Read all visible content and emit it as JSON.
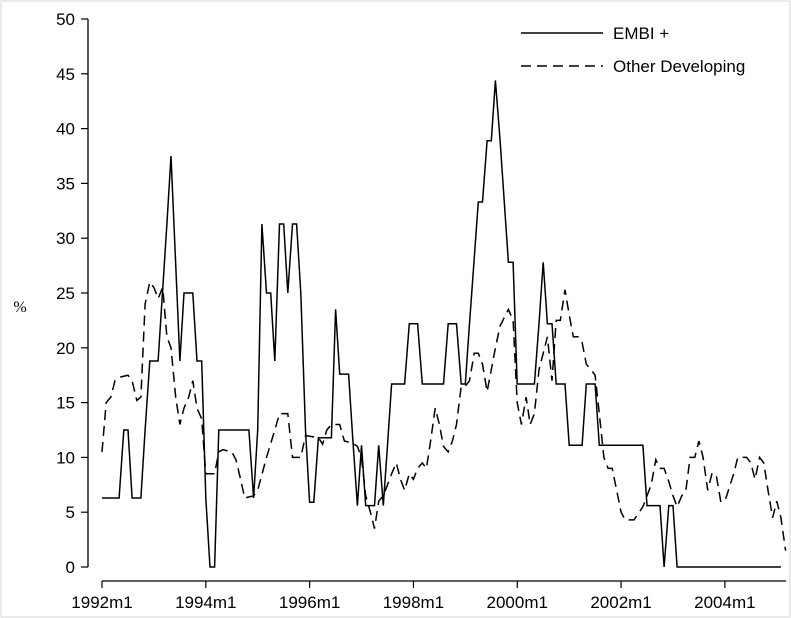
{
  "chart_data": {
    "type": "line",
    "ylabel": "%",
    "xlabel": "",
    "x_ticks": [
      "1992m1",
      "1994m1",
      "1996m1",
      "1998m1",
      "2000m1",
      "2002m1",
      "2004m1"
    ],
    "y_ticks": [
      "0",
      "5",
      "10",
      "15",
      "20",
      "25",
      "30",
      "35",
      "40",
      "45",
      "50"
    ],
    "xlim": [
      1992.0,
      2005.17
    ],
    "ylim": [
      0,
      50
    ],
    "grid": false,
    "legend_position": "top-right",
    "series": [
      {
        "name": "EMBI +",
        "style": "solid",
        "color": "#000000",
        "points": [
          [
            1992.0,
            6.3
          ],
          [
            1992.33,
            6.3
          ],
          [
            1992.42,
            12.5
          ],
          [
            1992.5,
            12.5
          ],
          [
            1992.58,
            6.3
          ],
          [
            1992.75,
            6.3
          ],
          [
            1992.83,
            12.5
          ],
          [
            1992.92,
            18.8
          ],
          [
            1993.08,
            18.8
          ],
          [
            1993.25,
            31.3
          ],
          [
            1993.33,
            37.5
          ],
          [
            1993.5,
            18.8
          ],
          [
            1993.58,
            25.0
          ],
          [
            1993.75,
            25.0
          ],
          [
            1993.83,
            18.8
          ],
          [
            1993.92,
            18.8
          ],
          [
            1994.0,
            6.3
          ],
          [
            1994.08,
            0.0
          ],
          [
            1994.17,
            0.0
          ],
          [
            1994.25,
            12.5
          ],
          [
            1994.83,
            12.5
          ],
          [
            1994.92,
            6.3
          ],
          [
            1995.0,
            12.5
          ],
          [
            1995.08,
            31.3
          ],
          [
            1995.17,
            25.0
          ],
          [
            1995.25,
            25.0
          ],
          [
            1995.33,
            18.8
          ],
          [
            1995.42,
            31.3
          ],
          [
            1995.5,
            31.3
          ],
          [
            1995.58,
            25.0
          ],
          [
            1995.67,
            31.3
          ],
          [
            1995.75,
            31.3
          ],
          [
            1995.83,
            25.0
          ],
          [
            1995.92,
            12.5
          ],
          [
            1996.0,
            5.9
          ],
          [
            1996.08,
            5.9
          ],
          [
            1996.17,
            11.8
          ],
          [
            1996.42,
            11.8
          ],
          [
            1996.5,
            23.5
          ],
          [
            1996.58,
            17.6
          ],
          [
            1996.75,
            17.6
          ],
          [
            1996.83,
            11.8
          ],
          [
            1996.92,
            5.6
          ],
          [
            1997.0,
            11.1
          ],
          [
            1997.08,
            5.6
          ],
          [
            1997.25,
            5.6
          ],
          [
            1997.33,
            11.1
          ],
          [
            1997.42,
            5.6
          ],
          [
            1997.5,
            11.1
          ],
          [
            1997.58,
            16.7
          ],
          [
            1997.83,
            16.7
          ],
          [
            1997.92,
            22.2
          ],
          [
            1998.08,
            22.2
          ],
          [
            1998.17,
            16.7
          ],
          [
            1998.58,
            16.7
          ],
          [
            1998.67,
            22.2
          ],
          [
            1998.83,
            22.2
          ],
          [
            1998.92,
            16.7
          ],
          [
            1999.0,
            16.7
          ],
          [
            1999.08,
            22.2
          ],
          [
            1999.25,
            33.3
          ],
          [
            1999.33,
            33.3
          ],
          [
            1999.42,
            38.9
          ],
          [
            1999.5,
            38.9
          ],
          [
            1999.58,
            44.4
          ],
          [
            1999.67,
            38.9
          ],
          [
            1999.83,
            27.8
          ],
          [
            1999.92,
            27.8
          ],
          [
            2000.0,
            16.7
          ],
          [
            2000.33,
            16.7
          ],
          [
            2000.42,
            22.2
          ],
          [
            2000.5,
            27.8
          ],
          [
            2000.58,
            22.2
          ],
          [
            2000.67,
            22.2
          ],
          [
            2000.75,
            16.7
          ],
          [
            2000.92,
            16.7
          ],
          [
            2001.0,
            11.1
          ],
          [
            2001.25,
            11.1
          ],
          [
            2001.33,
            16.7
          ],
          [
            2001.5,
            16.7
          ],
          [
            2001.58,
            11.1
          ],
          [
            2002.42,
            11.1
          ],
          [
            2002.5,
            5.6
          ],
          [
            2002.75,
            5.6
          ],
          [
            2002.83,
            0.0
          ],
          [
            2002.92,
            5.6
          ],
          [
            2003.0,
            5.6
          ],
          [
            2003.08,
            0.0
          ],
          [
            2005.08,
            0.0
          ]
        ]
      },
      {
        "name": "Other Developing",
        "style": "dashed",
        "color": "#000000",
        "points": [
          [
            1992.0,
            10.5
          ],
          [
            1992.08,
            15.0
          ],
          [
            1992.17,
            15.5
          ],
          [
            1992.25,
            17.0
          ],
          [
            1992.33,
            17.3
          ],
          [
            1992.5,
            17.5
          ],
          [
            1992.58,
            17.0
          ],
          [
            1992.67,
            15.2
          ],
          [
            1992.75,
            15.5
          ],
          [
            1992.83,
            24.0
          ],
          [
            1992.92,
            26.0
          ],
          [
            1993.0,
            25.5
          ],
          [
            1993.08,
            24.5
          ],
          [
            1993.17,
            25.5
          ],
          [
            1993.25,
            21.0
          ],
          [
            1993.33,
            20.0
          ],
          [
            1993.42,
            15.5
          ],
          [
            1993.5,
            13.0
          ],
          [
            1993.58,
            14.5
          ],
          [
            1993.67,
            15.5
          ],
          [
            1993.75,
            17.0
          ],
          [
            1993.83,
            14.5
          ],
          [
            1993.92,
            13.5
          ],
          [
            1994.0,
            8.5
          ],
          [
            1994.17,
            8.5
          ],
          [
            1994.25,
            10.5
          ],
          [
            1994.33,
            10.7
          ],
          [
            1994.5,
            10.5
          ],
          [
            1994.58,
            9.8
          ],
          [
            1994.67,
            8.0
          ],
          [
            1994.75,
            6.3
          ],
          [
            1994.92,
            6.5
          ],
          [
            1995.0,
            7.0
          ],
          [
            1995.17,
            10.0
          ],
          [
            1995.33,
            12.5
          ],
          [
            1995.42,
            14.0
          ],
          [
            1995.58,
            14.0
          ],
          [
            1995.67,
            10.0
          ],
          [
            1995.83,
            10.0
          ],
          [
            1995.92,
            12.0
          ],
          [
            1996.17,
            11.8
          ],
          [
            1996.25,
            11.2
          ],
          [
            1996.33,
            12.5
          ],
          [
            1996.42,
            13.0
          ],
          [
            1996.58,
            13.0
          ],
          [
            1996.67,
            11.5
          ],
          [
            1996.83,
            11.3
          ],
          [
            1996.92,
            11.0
          ],
          [
            1997.0,
            10.0
          ],
          [
            1997.08,
            6.5
          ],
          [
            1997.17,
            5.0
          ],
          [
            1997.25,
            3.5
          ],
          [
            1997.33,
            6.0
          ],
          [
            1997.42,
            6.5
          ],
          [
            1997.5,
            7.5
          ],
          [
            1997.58,
            8.5
          ],
          [
            1997.67,
            9.5
          ],
          [
            1997.75,
            8.0
          ],
          [
            1997.83,
            7.0
          ],
          [
            1997.92,
            8.5
          ],
          [
            1998.0,
            8.0
          ],
          [
            1998.08,
            9.0
          ],
          [
            1998.17,
            9.5
          ],
          [
            1998.25,
            9.0
          ],
          [
            1998.33,
            11.5
          ],
          [
            1998.42,
            14.5
          ],
          [
            1998.5,
            13.0
          ],
          [
            1998.58,
            11.0
          ],
          [
            1998.67,
            10.5
          ],
          [
            1998.75,
            11.5
          ],
          [
            1998.83,
            13.0
          ],
          [
            1998.92,
            16.5
          ],
          [
            1999.0,
            16.5
          ],
          [
            1999.08,
            17.0
          ],
          [
            1999.17,
            19.5
          ],
          [
            1999.25,
            19.5
          ],
          [
            1999.33,
            18.5
          ],
          [
            1999.42,
            16.0
          ],
          [
            1999.5,
            18.0
          ],
          [
            1999.58,
            20.0
          ],
          [
            1999.67,
            22.0
          ],
          [
            1999.83,
            23.5
          ],
          [
            1999.92,
            22.5
          ],
          [
            2000.0,
            15.0
          ],
          [
            2000.08,
            13.0
          ],
          [
            2000.17,
            15.5
          ],
          [
            2000.25,
            13.0
          ],
          [
            2000.33,
            14.0
          ],
          [
            2000.42,
            18.0
          ],
          [
            2000.5,
            19.5
          ],
          [
            2000.58,
            21.0
          ],
          [
            2000.67,
            17.0
          ],
          [
            2000.75,
            22.5
          ],
          [
            2000.83,
            22.5
          ],
          [
            2000.92,
            25.3
          ],
          [
            2001.0,
            23.0
          ],
          [
            2001.08,
            21.0
          ],
          [
            2001.17,
            21.0
          ],
          [
            2001.25,
            20.5
          ],
          [
            2001.33,
            18.5
          ],
          [
            2001.42,
            18.0
          ],
          [
            2001.5,
            17.5
          ],
          [
            2001.58,
            14.0
          ],
          [
            2001.67,
            10.0
          ],
          [
            2001.75,
            9.0
          ],
          [
            2001.83,
            9.0
          ],
          [
            2002.0,
            5.0
          ],
          [
            2002.08,
            4.3
          ],
          [
            2002.25,
            4.3
          ],
          [
            2002.42,
            5.5
          ],
          [
            2002.5,
            6.5
          ],
          [
            2002.58,
            7.5
          ],
          [
            2002.67,
            9.8
          ],
          [
            2002.75,
            9.0
          ],
          [
            2002.83,
            9.0
          ],
          [
            2002.92,
            7.8
          ],
          [
            2003.0,
            6.5
          ],
          [
            2003.08,
            5.5
          ],
          [
            2003.17,
            6.5
          ],
          [
            2003.25,
            7.0
          ],
          [
            2003.33,
            10.0
          ],
          [
            2003.42,
            10.0
          ],
          [
            2003.5,
            11.5
          ],
          [
            2003.58,
            10.0
          ],
          [
            2003.67,
            7.0
          ],
          [
            2003.75,
            8.5
          ],
          [
            2003.83,
            8.5
          ],
          [
            2003.92,
            6.0
          ],
          [
            2004.0,
            6.0
          ],
          [
            2004.17,
            8.5
          ],
          [
            2004.25,
            10.0
          ],
          [
            2004.42,
            10.0
          ],
          [
            2004.5,
            9.5
          ],
          [
            2004.58,
            8.0
          ],
          [
            2004.67,
            10.0
          ],
          [
            2004.75,
            9.5
          ],
          [
            2004.83,
            7.0
          ],
          [
            2004.92,
            4.5
          ],
          [
            2005.0,
            6.0
          ],
          [
            2005.08,
            4.5
          ],
          [
            2005.17,
            1.5
          ]
        ]
      }
    ]
  }
}
